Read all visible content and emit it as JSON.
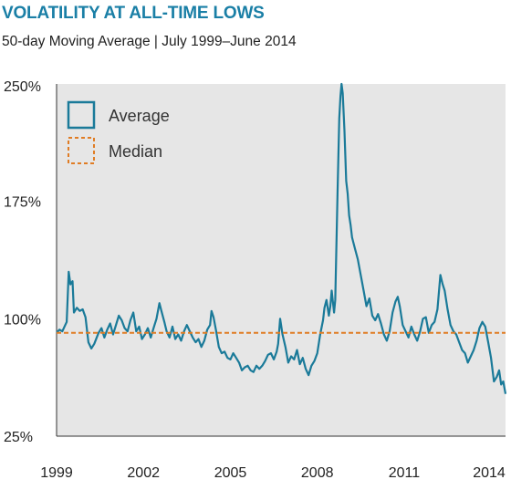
{
  "chart_data": {
    "type": "line",
    "title": "VOLATILITY AT ALL-TIME LOWS",
    "subtitle": "50-day Moving Average | July 1999–June 2014",
    "ylim": [
      25,
      250
    ],
    "xlim": [
      1999.0,
      2014.5
    ],
    "yticks": [
      "250%",
      "175%",
      "100%",
      "25%"
    ],
    "ytick_values": [
      250,
      175,
      100,
      25
    ],
    "xticks": [
      "1999",
      "2002",
      "2005",
      "2008",
      "2011",
      "2014"
    ],
    "xtick_values": [
      1999,
      2002,
      2005,
      2008,
      2011,
      2014
    ],
    "grid": false,
    "legend_position": "top-left",
    "series": [
      {
        "name": "Average",
        "color": "#1a7a99",
        "points": [
          [
            1999.0,
            91
          ],
          [
            1999.1,
            93
          ],
          [
            1999.2,
            92
          ],
          [
            1999.3,
            96
          ],
          [
            1999.35,
            98
          ],
          [
            1999.42,
            130
          ],
          [
            1999.48,
            122
          ],
          [
            1999.55,
            124
          ],
          [
            1999.6,
            104
          ],
          [
            1999.7,
            107
          ],
          [
            1999.8,
            105
          ],
          [
            1999.9,
            106
          ],
          [
            2000.0,
            101
          ],
          [
            2000.1,
            85
          ],
          [
            2000.2,
            81
          ],
          [
            2000.3,
            84
          ],
          [
            2000.45,
            91
          ],
          [
            2000.55,
            94
          ],
          [
            2000.65,
            88
          ],
          [
            2000.75,
            93
          ],
          [
            2000.85,
            97
          ],
          [
            2000.95,
            90
          ],
          [
            2001.05,
            96
          ],
          [
            2001.15,
            102
          ],
          [
            2001.25,
            99
          ],
          [
            2001.35,
            94
          ],
          [
            2001.45,
            92
          ],
          [
            2001.55,
            99
          ],
          [
            2001.65,
            104
          ],
          [
            2001.75,
            92
          ],
          [
            2001.85,
            95
          ],
          [
            2001.95,
            87
          ],
          [
            2002.05,
            90
          ],
          [
            2002.15,
            94
          ],
          [
            2002.25,
            88
          ],
          [
            2002.35,
            94
          ],
          [
            2002.45,
            100
          ],
          [
            2002.55,
            110
          ],
          [
            2002.62,
            105
          ],
          [
            2002.72,
            98
          ],
          [
            2002.8,
            92
          ],
          [
            2002.9,
            88
          ],
          [
            2003.0,
            95
          ],
          [
            2003.1,
            87
          ],
          [
            2003.2,
            90
          ],
          [
            2003.3,
            86
          ],
          [
            2003.4,
            92
          ],
          [
            2003.5,
            96
          ],
          [
            2003.6,
            92
          ],
          [
            2003.7,
            88
          ],
          [
            2003.8,
            85
          ],
          [
            2003.9,
            87
          ],
          [
            2004.0,
            82
          ],
          [
            2004.1,
            86
          ],
          [
            2004.2,
            93
          ],
          [
            2004.3,
            96
          ],
          [
            2004.35,
            105
          ],
          [
            2004.42,
            101
          ],
          [
            2004.5,
            93
          ],
          [
            2004.6,
            82
          ],
          [
            2004.7,
            78
          ],
          [
            2004.8,
            79
          ],
          [
            2004.9,
            75
          ],
          [
            2005.0,
            74
          ],
          [
            2005.1,
            78
          ],
          [
            2005.2,
            75
          ],
          [
            2005.3,
            72
          ],
          [
            2005.4,
            67
          ],
          [
            2005.5,
            69
          ],
          [
            2005.6,
            70
          ],
          [
            2005.7,
            67
          ],
          [
            2005.8,
            66
          ],
          [
            2005.9,
            70
          ],
          [
            2006.0,
            68
          ],
          [
            2006.1,
            70
          ],
          [
            2006.2,
            73
          ],
          [
            2006.3,
            77
          ],
          [
            2006.4,
            78
          ],
          [
            2006.5,
            74
          ],
          [
            2006.6,
            79
          ],
          [
            2006.65,
            84
          ],
          [
            2006.72,
            100
          ],
          [
            2006.8,
            90
          ],
          [
            2006.9,
            82
          ],
          [
            2007.0,
            72
          ],
          [
            2007.1,
            76
          ],
          [
            2007.2,
            74
          ],
          [
            2007.3,
            80
          ],
          [
            2007.4,
            71
          ],
          [
            2007.5,
            75
          ],
          [
            2007.6,
            68
          ],
          [
            2007.7,
            64
          ],
          [
            2007.8,
            70
          ],
          [
            2007.9,
            73
          ],
          [
            2008.0,
            78
          ],
          [
            2008.1,
            90
          ],
          [
            2008.2,
            99
          ],
          [
            2008.25,
            107
          ],
          [
            2008.32,
            112
          ],
          [
            2008.4,
            102
          ],
          [
            2008.45,
            108
          ],
          [
            2008.5,
            118
          ],
          [
            2008.58,
            104
          ],
          [
            2008.62,
            112
          ],
          [
            2008.7,
            180
          ],
          [
            2008.76,
            228
          ],
          [
            2008.8,
            242
          ],
          [
            2008.84,
            250
          ],
          [
            2008.88,
            244
          ],
          [
            2008.94,
            220
          ],
          [
            2009.0,
            188
          ],
          [
            2009.05,
            180
          ],
          [
            2009.1,
            166
          ],
          [
            2009.15,
            160
          ],
          [
            2009.2,
            152
          ],
          [
            2009.3,
            145
          ],
          [
            2009.4,
            138
          ],
          [
            2009.5,
            128
          ],
          [
            2009.6,
            118
          ],
          [
            2009.7,
            108
          ],
          [
            2009.8,
            113
          ],
          [
            2009.9,
            102
          ],
          [
            2010.0,
            99
          ],
          [
            2010.1,
            103
          ],
          [
            2010.2,
            97
          ],
          [
            2010.3,
            90
          ],
          [
            2010.4,
            86
          ],
          [
            2010.5,
            92
          ],
          [
            2010.6,
            104
          ],
          [
            2010.7,
            111
          ],
          [
            2010.78,
            114
          ],
          [
            2010.85,
            108
          ],
          [
            2010.95,
            96
          ],
          [
            2011.05,
            92
          ],
          [
            2011.15,
            88
          ],
          [
            2011.25,
            95
          ],
          [
            2011.35,
            90
          ],
          [
            2011.45,
            86
          ],
          [
            2011.55,
            92
          ],
          [
            2011.65,
            100
          ],
          [
            2011.75,
            101
          ],
          [
            2011.85,
            91
          ],
          [
            2011.95,
            96
          ],
          [
            2012.05,
            98
          ],
          [
            2012.15,
            106
          ],
          [
            2012.25,
            128
          ],
          [
            2012.33,
            122
          ],
          [
            2012.4,
            118
          ],
          [
            2012.5,
            106
          ],
          [
            2012.6,
            96
          ],
          [
            2012.7,
            92
          ],
          [
            2012.8,
            90
          ],
          [
            2012.9,
            85
          ],
          [
            2013.0,
            80
          ],
          [
            2013.1,
            78
          ],
          [
            2013.2,
            72
          ],
          [
            2013.3,
            76
          ],
          [
            2013.4,
            80
          ],
          [
            2013.5,
            86
          ],
          [
            2013.6,
            94
          ],
          [
            2013.7,
            98
          ],
          [
            2013.8,
            95
          ],
          [
            2013.9,
            85
          ],
          [
            2014.0,
            75
          ],
          [
            2014.1,
            60
          ],
          [
            2014.2,
            63
          ],
          [
            2014.28,
            67
          ],
          [
            2014.35,
            58
          ],
          [
            2014.42,
            60
          ],
          [
            2014.5,
            52
          ]
        ]
      },
      {
        "name": "Median",
        "color": "#e07c24",
        "style": "dashed",
        "points": [
          [
            1999.0,
            91
          ],
          [
            2014.5,
            91
          ]
        ]
      }
    ]
  }
}
